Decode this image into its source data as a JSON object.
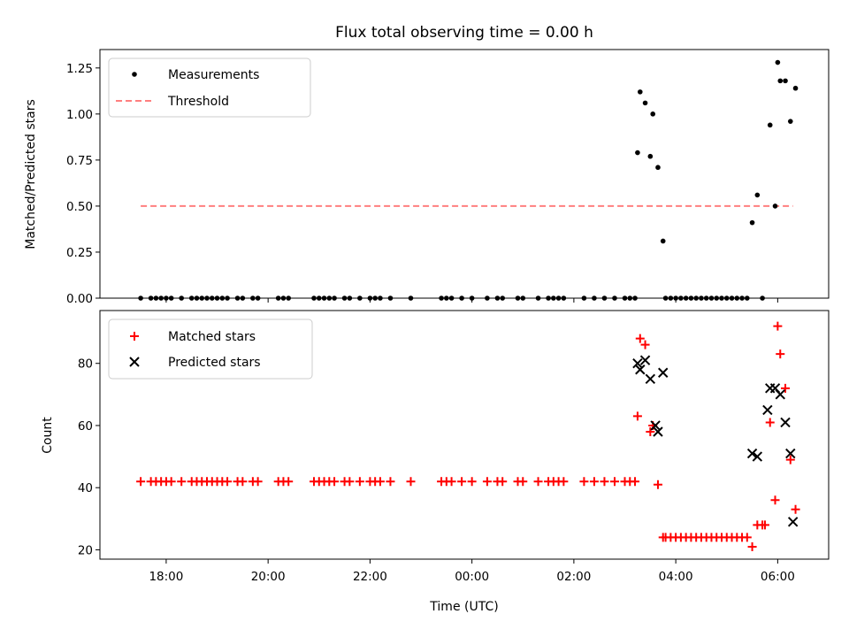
{
  "chart_data": {
    "type": "scatter",
    "title": "Flux total observing time = 0.00 h",
    "xlabel": "Time (UTC)",
    "x_units": "hours since 00:00 UTC",
    "xlim": [
      -7.3,
      7.0
    ],
    "xticks": [
      {
        "value": -6,
        "label": "18:00"
      },
      {
        "value": -4,
        "label": "20:00"
      },
      {
        "value": -2,
        "label": "22:00"
      },
      {
        "value": 0,
        "label": "00:00"
      },
      {
        "value": 2,
        "label": "02:00"
      },
      {
        "value": 4,
        "label": "04:00"
      },
      {
        "value": 6,
        "label": "06:00"
      }
    ],
    "top": {
      "ylabel": "Matched/Predicted stars",
      "ylim": [
        0,
        1.35
      ],
      "yticks": [
        "0.00",
        "0.25",
        "0.50",
        "0.75",
        "1.00",
        "1.25"
      ],
      "legend": [
        {
          "label": "Measurements",
          "marker": "dot",
          "color": "#000000"
        },
        {
          "label": "Threshold",
          "marker": "dashed-line",
          "color": "#ff7f7f"
        }
      ],
      "threshold": {
        "value": 0.5,
        "x_start": -6.5,
        "x_end": 6.3
      },
      "measurements": {
        "x": [
          -6.5,
          -6.3,
          -6.2,
          -6.1,
          -6.0,
          -5.9,
          -5.7,
          -5.5,
          -5.4,
          -5.3,
          -5.2,
          -5.1,
          -5.0,
          -4.9,
          -4.8,
          -4.6,
          -4.5,
          -4.3,
          -4.2,
          -3.8,
          -3.7,
          -3.6,
          -3.1,
          -3.0,
          -2.9,
          -2.8,
          -2.7,
          -2.5,
          -2.4,
          -2.2,
          -2.0,
          -1.9,
          -1.8,
          -1.6,
          -1.2,
          -0.6,
          -0.5,
          -0.4,
          -0.2,
          0.0,
          0.3,
          0.5,
          0.6,
          0.9,
          1.0,
          1.3,
          1.5,
          1.6,
          1.7,
          1.8,
          2.2,
          2.4,
          2.6,
          2.8,
          3.0,
          3.1,
          3.2,
          3.25,
          3.3,
          3.4,
          3.5,
          3.55,
          3.65,
          3.75,
          3.8,
          3.9,
          4.0,
          4.1,
          4.2,
          4.3,
          4.4,
          4.5,
          4.6,
          4.7,
          4.8,
          4.9,
          5.0,
          5.1,
          5.2,
          5.3,
          5.4,
          5.5,
          5.6,
          5.7,
          5.85,
          5.95,
          6.0,
          6.05,
          6.15,
          6.25,
          6.35
        ],
        "y": [
          0,
          0,
          0,
          0,
          0,
          0,
          0,
          0,
          0,
          0,
          0,
          0,
          0,
          0,
          0,
          0,
          0,
          0,
          0,
          0,
          0,
          0,
          0,
          0,
          0,
          0,
          0,
          0,
          0,
          0,
          0,
          0,
          0,
          0,
          0,
          0,
          0,
          0,
          0,
          0,
          0,
          0,
          0,
          0,
          0,
          0,
          0,
          0,
          0,
          0,
          0,
          0,
          0,
          0,
          0,
          0,
          0,
          0.79,
          1.12,
          1.06,
          0.77,
          1.0,
          0.71,
          0.31,
          0,
          0,
          0,
          0,
          0,
          0,
          0,
          0,
          0,
          0,
          0,
          0,
          0,
          0,
          0,
          0,
          0,
          0.41,
          0.56,
          0,
          0.94,
          0.5,
          1.28,
          1.18,
          1.18,
          0.96,
          1.14
        ]
      }
    },
    "bottom": {
      "ylabel": "Count",
      "ylim": [
        17,
        97
      ],
      "yticks": [
        "20",
        "40",
        "60",
        "80"
      ],
      "legend": [
        {
          "label": "Matched stars",
          "marker": "plus",
          "color": "#ff0000"
        },
        {
          "label": "Predicted stars",
          "marker": "x",
          "color": "#000000"
        }
      ],
      "matched": {
        "x": [
          -6.5,
          -6.3,
          -6.2,
          -6.1,
          -6.0,
          -5.9,
          -5.7,
          -5.5,
          -5.4,
          -5.3,
          -5.2,
          -5.1,
          -5.0,
          -4.9,
          -4.8,
          -4.6,
          -4.5,
          -4.3,
          -4.2,
          -3.8,
          -3.7,
          -3.6,
          -3.1,
          -3.0,
          -2.9,
          -2.8,
          -2.7,
          -2.5,
          -2.4,
          -2.2,
          -2.0,
          -1.9,
          -1.8,
          -1.6,
          -1.2,
          -0.6,
          -0.5,
          -0.4,
          -0.2,
          0.0,
          0.3,
          0.5,
          0.6,
          0.9,
          1.0,
          1.3,
          1.5,
          1.6,
          1.7,
          1.8,
          2.2,
          2.4,
          2.6,
          2.8,
          3.0,
          3.1,
          3.2,
          3.25,
          3.3,
          3.4,
          3.5,
          3.55,
          3.65,
          3.75,
          3.8,
          3.9,
          4.0,
          4.1,
          4.2,
          4.3,
          4.4,
          4.5,
          4.6,
          4.7,
          4.8,
          4.9,
          5.0,
          5.1,
          5.2,
          5.3,
          5.4,
          5.5,
          5.6,
          5.7,
          5.75,
          5.85,
          5.95,
          6.0,
          6.05,
          6.15,
          6.25,
          6.35
        ],
        "y": [
          42,
          42,
          42,
          42,
          42,
          42,
          42,
          42,
          42,
          42,
          42,
          42,
          42,
          42,
          42,
          42,
          42,
          42,
          42,
          42,
          42,
          42,
          42,
          42,
          42,
          42,
          42,
          42,
          42,
          42,
          42,
          42,
          42,
          42,
          42,
          42,
          42,
          42,
          42,
          42,
          42,
          42,
          42,
          42,
          42,
          42,
          42,
          42,
          42,
          42,
          42,
          42,
          42,
          42,
          42,
          42,
          42,
          63,
          88,
          86,
          58,
          60,
          41,
          24,
          24,
          24,
          24,
          24,
          24,
          24,
          24,
          24,
          24,
          24,
          24,
          24,
          24,
          24,
          24,
          24,
          24,
          21,
          28,
          28,
          28,
          61,
          36,
          92,
          83,
          72,
          49,
          33
        ]
      },
      "predicted": {
        "x": [
          3.25,
          3.3,
          3.4,
          3.5,
          3.6,
          3.65,
          3.75,
          5.5,
          5.6,
          5.8,
          5.85,
          5.95,
          6.05,
          6.15,
          6.25,
          6.3
        ],
        "y": [
          80,
          78,
          81,
          75,
          60,
          58,
          77,
          51,
          50,
          65,
          72,
          72,
          70,
          61,
          51,
          29
        ]
      }
    }
  }
}
